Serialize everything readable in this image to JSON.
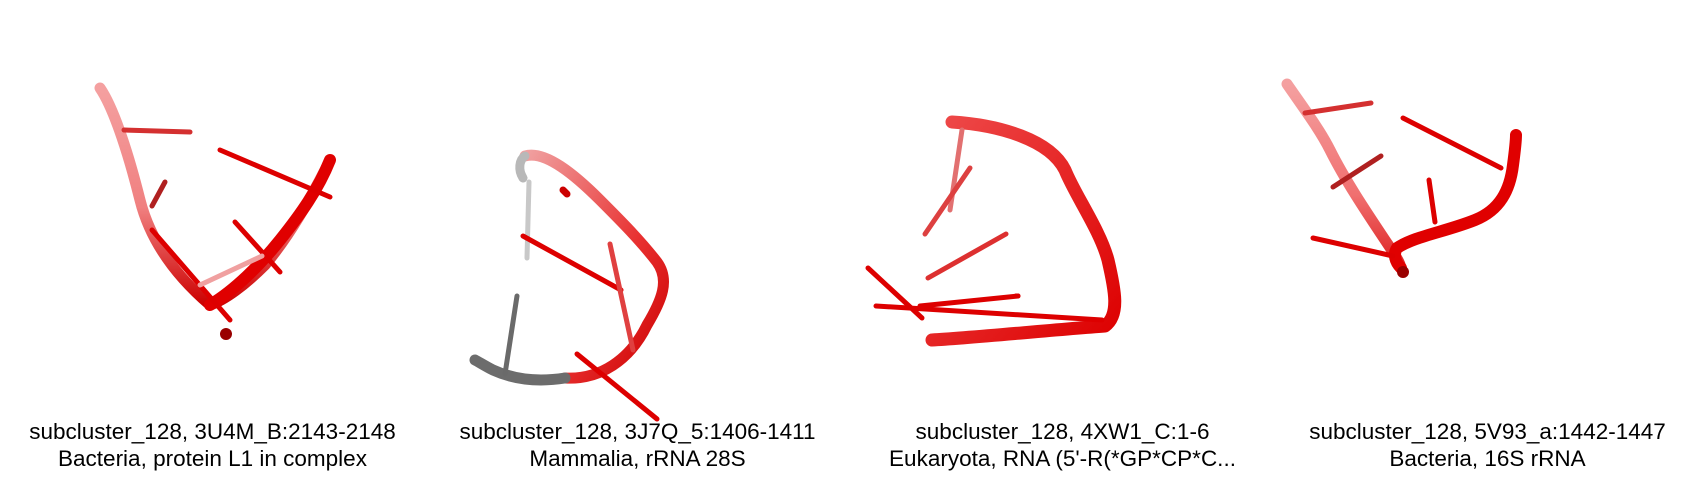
{
  "panels": [
    {
      "title": "subcluster_128, 3U4M_B:2143-2148",
      "subtitle": "Bacteria, protein L1 in complex",
      "colors": {
        "main": "#e80000",
        "faded": "#f07070"
      }
    },
    {
      "title": "subcluster_128, 3J7Q_5:1406-1411",
      "subtitle": "Mammalia, rRNA 28S",
      "colors": {
        "main": "#e80000",
        "unaligned": "#707070"
      }
    },
    {
      "title": "subcluster_128, 4XW1_C:1-6",
      "subtitle": "Eukaryota, RNA (5'-R(*GP*CP*C...",
      "colors": {
        "main": "#e80000",
        "faded": "#f07070"
      }
    },
    {
      "title": "subcluster_128, 5V93_a:1442-1447",
      "subtitle": "Bacteria, 16S rRNA",
      "colors": {
        "main": "#e80000",
        "faded": "#f07070"
      }
    }
  ]
}
